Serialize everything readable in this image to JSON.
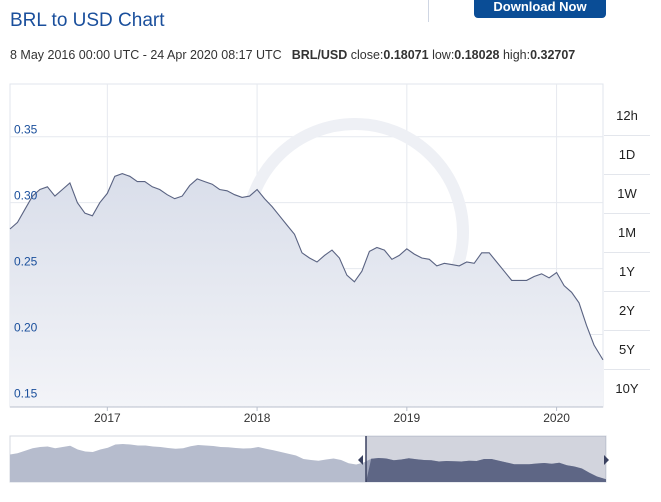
{
  "header": {
    "title": "BRL to USD Chart",
    "download_label": "Download Now"
  },
  "summary": {
    "period": "8 May 2016 00:00 UTC - 24 Apr 2020 08:17 UTC",
    "pair": "BRL/USD",
    "close_label": "close:",
    "close": "0.18071",
    "low_label": "low:",
    "low": "0.18028",
    "high_label": "high:",
    "high": "0.32707"
  },
  "range_buttons": [
    "12h",
    "1D",
    "1W",
    "1M",
    "1Y",
    "2Y",
    "5Y",
    "10Y"
  ],
  "colors": {
    "line": "#5a6382",
    "area": "#dfe3ee",
    "accent": "#1a4f9c",
    "button": "#0a4d96"
  },
  "chart_data": {
    "type": "area",
    "title": "BRL to USD Chart",
    "xlabel": "",
    "ylabel": "",
    "x_ticks": [
      "2017",
      "2018",
      "2019",
      "2020"
    ],
    "y_ticks": [
      "0.35",
      "0.30",
      "0.25",
      "0.20",
      "0.15"
    ],
    "ylim": [
      0.145,
      0.39
    ],
    "xlim": [
      2016.35,
      2020.31
    ],
    "grid": true,
    "legend": "none",
    "series": [
      {
        "x": [
          2016.35,
          2016.4,
          2016.45,
          2016.5,
          2016.55,
          2016.6,
          2016.65,
          2016.7,
          2016.75,
          2016.8,
          2016.85,
          2016.9,
          2016.95,
          2017.0,
          2017.05,
          2017.1,
          2017.15,
          2017.2,
          2017.25,
          2017.3,
          2017.35,
          2017.4,
          2017.45,
          2017.5,
          2017.55,
          2017.6,
          2017.65,
          2017.7,
          2017.75,
          2017.8,
          2017.85,
          2017.9,
          2017.95,
          2018.0,
          2018.05,
          2018.1,
          2018.15,
          2018.2,
          2018.25,
          2018.3,
          2018.35,
          2018.4,
          2018.45,
          2018.5,
          2018.55,
          2018.6,
          2018.65,
          2018.7,
          2018.75,
          2018.8,
          2018.85,
          2018.9,
          2018.95,
          2019.0,
          2019.05,
          2019.1,
          2019.15,
          2019.2,
          2019.25,
          2019.3,
          2019.35,
          2019.4,
          2019.45,
          2019.5,
          2019.55,
          2019.6,
          2019.65,
          2019.7,
          2019.75,
          2019.8,
          2019.85,
          2019.9,
          2019.95,
          2020.0,
          2020.05,
          2020.1,
          2020.15,
          2020.2,
          2020.25,
          2020.31
        ],
        "y": [
          0.28,
          0.285,
          0.295,
          0.305,
          0.31,
          0.312,
          0.305,
          0.31,
          0.315,
          0.3,
          0.292,
          0.29,
          0.3,
          0.307,
          0.32,
          0.322,
          0.32,
          0.316,
          0.316,
          0.312,
          0.31,
          0.306,
          0.303,
          0.305,
          0.313,
          0.318,
          0.316,
          0.314,
          0.31,
          0.309,
          0.306,
          0.304,
          0.305,
          0.31,
          0.303,
          0.297,
          0.29,
          0.283,
          0.276,
          0.262,
          0.258,
          0.255,
          0.26,
          0.264,
          0.258,
          0.245,
          0.24,
          0.248,
          0.263,
          0.266,
          0.264,
          0.257,
          0.26,
          0.265,
          0.261,
          0.258,
          0.257,
          0.252,
          0.254,
          0.253,
          0.252,
          0.255,
          0.254,
          0.262,
          0.262,
          0.255,
          0.248,
          0.241,
          0.241,
          0.241,
          0.244,
          0.246,
          0.243,
          0.247,
          0.237,
          0.232,
          0.224,
          0.207,
          0.192,
          0.1807
        ]
      }
    ]
  }
}
